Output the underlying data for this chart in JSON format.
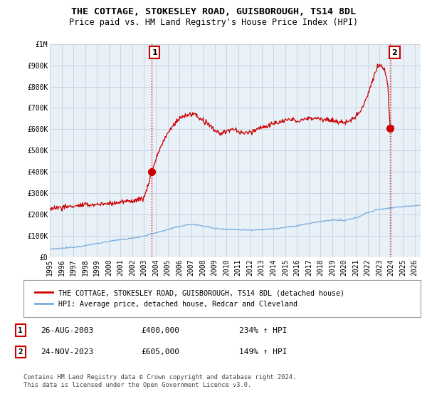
{
  "title": "THE COTTAGE, STOKESLEY ROAD, GUISBOROUGH, TS14 8DL",
  "subtitle": "Price paid vs. HM Land Registry's House Price Index (HPI)",
  "ylim": [
    0,
    1000000
  ],
  "yticks": [
    0,
    100000,
    200000,
    300000,
    400000,
    500000,
    600000,
    700000,
    800000,
    900000,
    1000000
  ],
  "ytick_labels": [
    "£0",
    "£100K",
    "£200K",
    "£300K",
    "£400K",
    "£500K",
    "£600K",
    "£700K",
    "£800K",
    "£900K",
    "£1M"
  ],
  "xlim_start": 1995.0,
  "xlim_end": 2026.5,
  "xtick_years": [
    1995,
    1996,
    1997,
    1998,
    1999,
    2000,
    2001,
    2002,
    2003,
    2004,
    2005,
    2006,
    2007,
    2008,
    2009,
    2010,
    2011,
    2012,
    2013,
    2014,
    2015,
    2016,
    2017,
    2018,
    2019,
    2020,
    2021,
    2022,
    2023,
    2024,
    2025,
    2026
  ],
  "line1_color": "#cc0000",
  "line2_color": "#7aaddc",
  "chart_bg": "#e8f0f8",
  "point1_x": 2003.65,
  "point1_y": 400000,
  "point1_label": "1",
  "point2_x": 2023.9,
  "point2_y": 605000,
  "point2_label": "2",
  "vline1_x": 2003.65,
  "vline2_x": 2023.9,
  "legend_line1": "THE COTTAGE, STOKESLEY ROAD, GUISBOROUGH, TS14 8DL (detached house)",
  "legend_line2": "HPI: Average price, detached house, Redcar and Cleveland",
  "table_row1_num": "1",
  "table_row1_date": "26-AUG-2003",
  "table_row1_price": "£400,000",
  "table_row1_hpi": "234% ↑ HPI",
  "table_row2_num": "2",
  "table_row2_date": "24-NOV-2023",
  "table_row2_price": "£605,000",
  "table_row2_hpi": "149% ↑ HPI",
  "footer": "Contains HM Land Registry data © Crown copyright and database right 2024.\nThis data is licensed under the Open Government Licence v3.0.",
  "bg_color": "#ffffff",
  "grid_color": "#c0c8d8",
  "title_fontsize": 9.5,
  "subtitle_fontsize": 8.5,
  "label_fontsize": 8,
  "tick_fontsize": 7
}
